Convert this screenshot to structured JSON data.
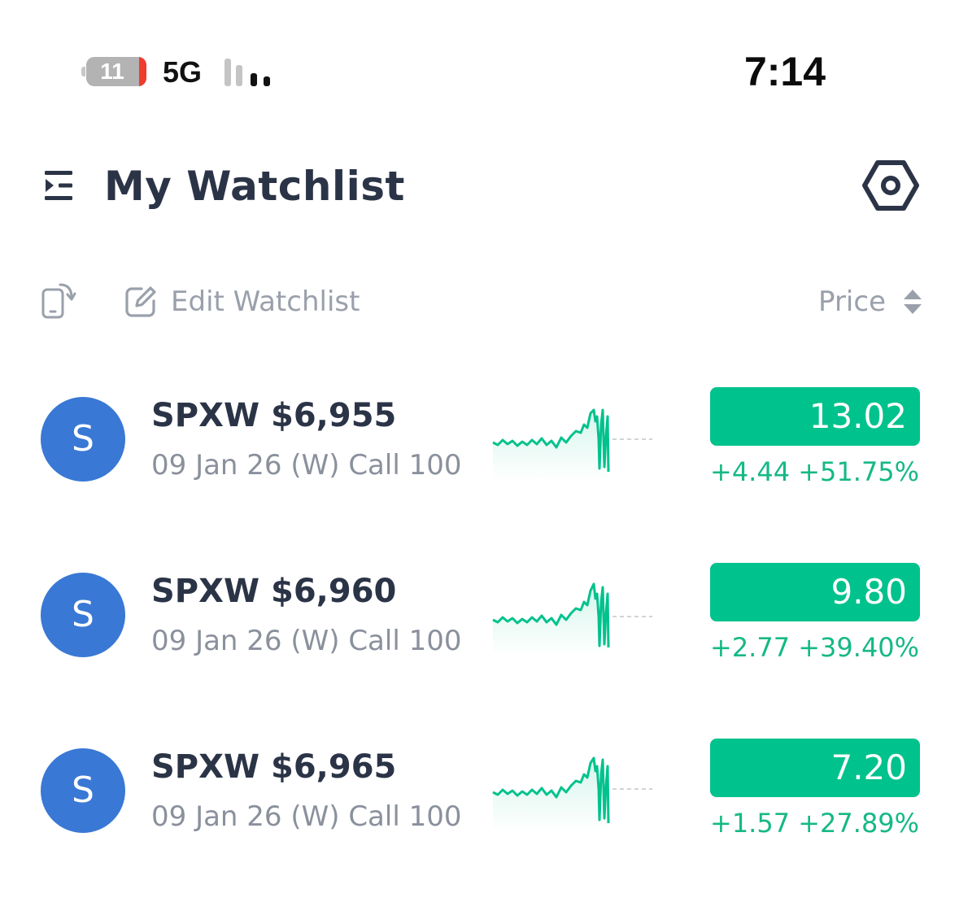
{
  "status_bar": {
    "battery_level": "11",
    "network": "5G",
    "time": "7:14"
  },
  "header": {
    "title": "My Watchlist",
    "menu_icon": "menu-collapse-icon",
    "settings_icon": "hexagon-gear-icon"
  },
  "toolbar": {
    "rotate_icon": "phone-rotate-icon",
    "edit_label": "Edit Watchlist",
    "edit_icon": "edit-square-icon",
    "sort_label": "Price",
    "sort_icon": "sort-arrows-icon"
  },
  "colors": {
    "title": "#2b3447",
    "muted": "#9aa0ab",
    "avatar": "#3978d4",
    "positive": "#00c28c",
    "positive_text": "#16b886",
    "battery_low": "#ef3b2d"
  },
  "watchlist": [
    {
      "avatar_letter": "S",
      "title": "SPXW $6,955",
      "subtitle": "09 Jan 26 (W) Call 100",
      "price": "13.02",
      "change": "+4.44 +51.75%"
    },
    {
      "avatar_letter": "S",
      "title": "SPXW $6,960",
      "subtitle": "09 Jan 26 (W) Call 100",
      "price": "9.80",
      "change": "+2.77 +39.40%"
    },
    {
      "avatar_letter": "S",
      "title": "SPXW $6,965",
      "subtitle": "09 Jan 26 (W) Call 100",
      "price": "7.20",
      "change": "+1.57 +27.89%"
    }
  ]
}
